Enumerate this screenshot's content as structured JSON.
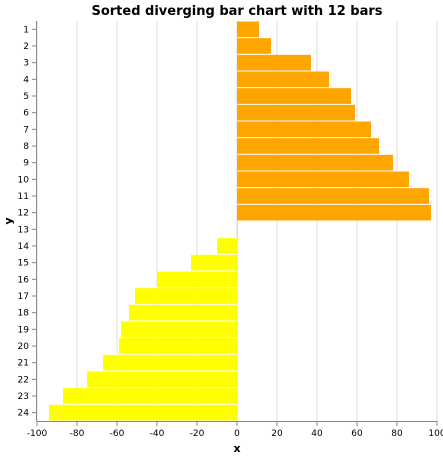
{
  "chart_data": {
    "type": "bar",
    "orientation": "horizontal",
    "title": "Sorted diverging bar chart with 12 bars",
    "xlabel": "x",
    "ylabel": "y",
    "xlim": [
      -100,
      100
    ],
    "xticks": [
      -100,
      -80,
      -60,
      -40,
      -20,
      0,
      20,
      40,
      60,
      80,
      100
    ],
    "grid": true,
    "colors": {
      "positive": "#ffa500",
      "negative": "#ffff00"
    },
    "categories": [
      "1",
      "2",
      "3",
      "4",
      "5",
      "6",
      "7",
      "8",
      "9",
      "10",
      "11",
      "12",
      "13",
      "14",
      "15",
      "16",
      "17",
      "18",
      "19",
      "20",
      "21",
      "22",
      "23",
      "24"
    ],
    "values": [
      11,
      17,
      37,
      46,
      57,
      59,
      67,
      71,
      78,
      86,
      96,
      97,
      0,
      -10,
      -23,
      -40,
      -51,
      -54,
      -58,
      -59,
      -67,
      -75,
      -87,
      -94
    ]
  }
}
